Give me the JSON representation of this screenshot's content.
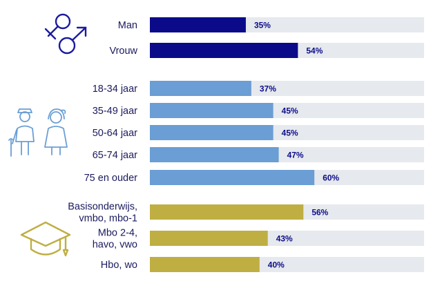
{
  "colors": {
    "track": "#e6e9ed",
    "gender": "#0b0b8a",
    "age": "#6a9ed4",
    "education": "#bfae42",
    "label": "#1a1a5e",
    "value": "#0d0d8a"
  },
  "icons": {
    "gender": "gender-symbols-icon",
    "age": "elderly-couple-icon",
    "education": "graduation-cap-icon"
  },
  "chart_data": {
    "type": "bar",
    "orientation": "horizontal",
    "xlim": [
      0,
      100
    ],
    "unit": "%",
    "groups": [
      {
        "name": "gender",
        "icon": "gender-symbols-icon",
        "color": "#0b0b8a",
        "bars": [
          {
            "label": [
              "Man"
            ],
            "value": 35,
            "value_label": "35%"
          },
          {
            "label": [
              "Vrouw"
            ],
            "value": 54,
            "value_label": "54%"
          }
        ]
      },
      {
        "name": "age",
        "icon": "elderly-couple-icon",
        "color": "#6a9ed4",
        "bars": [
          {
            "label": [
              "18-34 jaar"
            ],
            "value": 37,
            "value_label": "37%"
          },
          {
            "label": [
              "35-49 jaar"
            ],
            "value": 45,
            "value_label": "45%"
          },
          {
            "label": [
              "50-64 jaar"
            ],
            "value": 45,
            "value_label": "45%"
          },
          {
            "label": [
              "65-74 jaar"
            ],
            "value": 47,
            "value_label": "47%"
          },
          {
            "label": [
              "75 en ouder"
            ],
            "value": 60,
            "value_label": "60%"
          }
        ]
      },
      {
        "name": "education",
        "icon": "graduation-cap-icon",
        "color": "#bfae42",
        "bars": [
          {
            "label": [
              "Basisonderwijs,",
              "vmbo, mbo-1"
            ],
            "value": 56,
            "value_label": "56%"
          },
          {
            "label": [
              "Mbo 2-4,",
              "havo, vwo"
            ],
            "value": 43,
            "value_label": "43%"
          },
          {
            "label": [
              "Hbo, wo"
            ],
            "value": 40,
            "value_label": "40%"
          }
        ]
      }
    ]
  }
}
